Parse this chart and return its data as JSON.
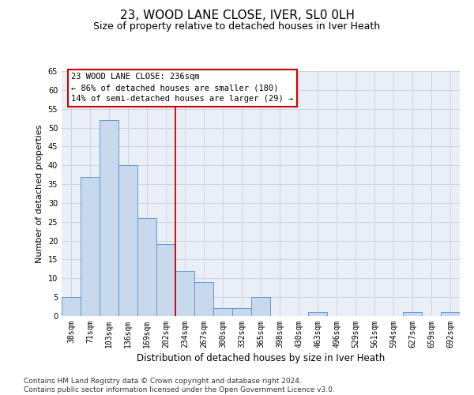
{
  "title": "23, WOOD LANE CLOSE, IVER, SL0 0LH",
  "subtitle": "Size of property relative to detached houses in Iver Heath",
  "xlabel": "Distribution of detached houses by size in Iver Heath",
  "ylabel": "Number of detached properties",
  "bar_labels": [
    "38sqm",
    "71sqm",
    "103sqm",
    "136sqm",
    "169sqm",
    "202sqm",
    "234sqm",
    "267sqm",
    "300sqm",
    "332sqm",
    "365sqm",
    "398sqm",
    "430sqm",
    "463sqm",
    "496sqm",
    "529sqm",
    "561sqm",
    "594sqm",
    "627sqm",
    "659sqm",
    "692sqm"
  ],
  "bar_values": [
    5,
    37,
    52,
    40,
    26,
    19,
    12,
    9,
    2,
    2,
    5,
    0,
    0,
    1,
    0,
    0,
    0,
    0,
    1,
    0,
    1
  ],
  "bar_color": "#c8d9ed",
  "bar_edgecolor": "#5b9bd5",
  "vline_x": 5.5,
  "vline_color": "#cc0000",
  "annotation_line1": "23 WOOD LANE CLOSE: 236sqm",
  "annotation_line2": "← 86% of detached houses are smaller (180)",
  "annotation_line3": "14% of semi-detached houses are larger (29) →",
  "annotation_box_facecolor": "#ffffff",
  "annotation_box_edgecolor": "#cc0000",
  "grid_color": "#c9d4e5",
  "bg_color": "#eaeff7",
  "ylim": [
    0,
    65
  ],
  "yticks": [
    0,
    5,
    10,
    15,
    20,
    25,
    30,
    35,
    40,
    45,
    50,
    55,
    60,
    65
  ],
  "footer_line1": "Contains HM Land Registry data © Crown copyright and database right 2024.",
  "footer_line2": "Contains public sector information licensed under the Open Government Licence v3.0.",
  "title_fontsize": 11,
  "subtitle_fontsize": 9,
  "ylabel_fontsize": 8,
  "xlabel_fontsize": 8.5,
  "tick_fontsize": 7,
  "annotation_fontsize": 7.5,
  "footer_fontsize": 6.5
}
